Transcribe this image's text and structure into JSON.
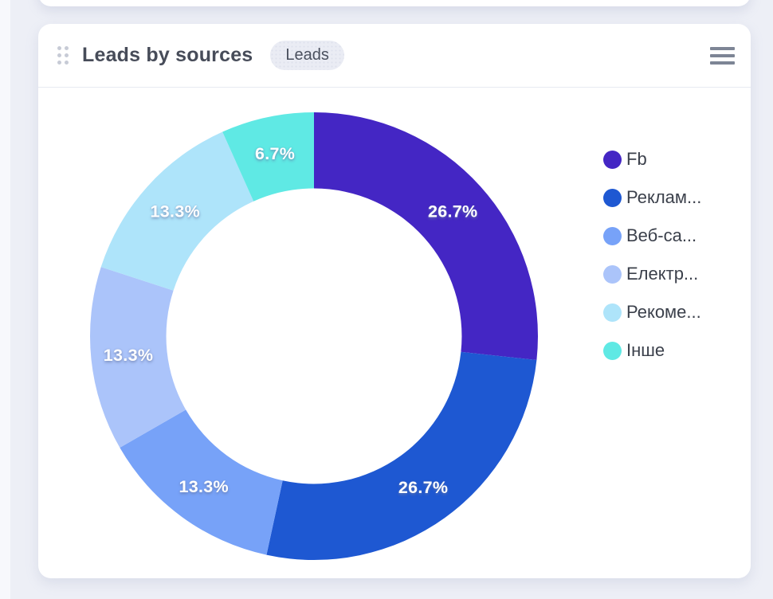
{
  "page": {
    "background_color": "#edeff6",
    "card_color": "#ffffff"
  },
  "header": {
    "title": "Leads by sources",
    "badge": "Leads"
  },
  "chart_data": {
    "type": "pie",
    "title": "Leads by sources",
    "donut": true,
    "inner_radius_ratio": 0.66,
    "start_angle_deg": 0,
    "direction": "clockwise",
    "legend_position": "right",
    "series": [
      {
        "name": "Fb",
        "value": 26.7,
        "label": "26.7%",
        "color": "#4426C4"
      },
      {
        "name": "Реклам...",
        "value": 26.7,
        "label": "26.7%",
        "color": "#1E58D2"
      },
      {
        "name": "Веб-са...",
        "value": 13.3,
        "label": "13.3%",
        "color": "#77A2F8"
      },
      {
        "name": "Електр...",
        "value": 13.3,
        "label": "13.3%",
        "color": "#ABC4FA"
      },
      {
        "name": "Рекоме...",
        "value": 13.3,
        "label": "13.3%",
        "color": "#AEE4FA"
      },
      {
        "name": "Інше",
        "value": 6.7,
        "label": "6.7%",
        "color": "#5FE9E4"
      }
    ]
  }
}
